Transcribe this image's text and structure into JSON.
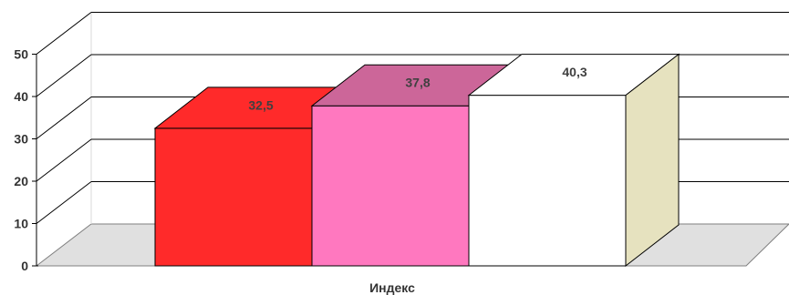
{
  "chart_data": {
    "type": "bar",
    "categories": [
      "Индекс"
    ],
    "series": [
      {
        "values": [
          32.5
        ],
        "label": "32,5",
        "color": "#ff2a2a",
        "top_color": "#ff2a2a",
        "side_color": "#cc1f1f"
      },
      {
        "values": [
          37.8
        ],
        "label": "37,8",
        "color": "#ff78bf",
        "top_color": "#cc6699",
        "side_color": "#cc5f99"
      },
      {
        "values": [
          40.3
        ],
        "label": "40,3",
        "color": "#ffffff",
        "top_color": "#ffffff",
        "side_color": "#e6e2bf"
      }
    ],
    "xlabel": "Индекс",
    "ylabel": "",
    "title": "",
    "ylim": [
      0,
      50
    ],
    "yticks": [
      "0",
      "10",
      "20",
      "30",
      "40",
      "50"
    ],
    "grid": true,
    "legend": "none",
    "style": "3d"
  }
}
